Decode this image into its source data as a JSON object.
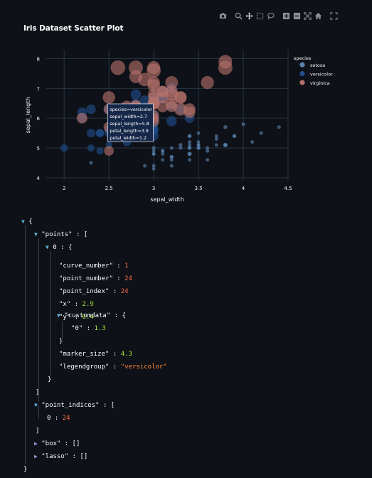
{
  "toolbar": {
    "icons": [
      "camera-icon",
      "zoom-icon",
      "pan-icon",
      "box-select-icon",
      "lasso-select-icon",
      "zoom-in-icon",
      "zoom-out-icon",
      "autoscale-icon",
      "reset-axes-icon",
      "fullscreen-icon"
    ]
  },
  "chart_data": {
    "type": "scatter",
    "title": "Iris Dataset Scatter Plot",
    "xlabel": "sepal_width",
    "ylabel": "sepal_length",
    "xlim": [
      1.8,
      4.5
    ],
    "ylim": [
      3.9,
      8.3
    ],
    "x_ticks": [
      "2",
      "2.5",
      "3",
      "3.5",
      "4",
      "4.5"
    ],
    "y_ticks": [
      "4",
      "5",
      "6",
      "7",
      "8"
    ],
    "grid": true,
    "legend_title": "species",
    "legend_position": "top-right",
    "series": [
      {
        "name": "setosa",
        "color": "#5b84b1",
        "points": [
          [
            3.5,
            5.1
          ],
          [
            3.0,
            4.9
          ],
          [
            3.2,
            4.7
          ],
          [
            3.1,
            4.6
          ],
          [
            3.6,
            5.0
          ],
          [
            3.9,
            5.4
          ],
          [
            3.4,
            4.6
          ],
          [
            3.4,
            5.0
          ],
          [
            2.9,
            4.4
          ],
          [
            3.1,
            4.9
          ],
          [
            3.7,
            5.4
          ],
          [
            3.4,
            4.8
          ],
          [
            3.0,
            4.8
          ],
          [
            3.0,
            4.3
          ],
          [
            4.0,
            5.8
          ],
          [
            4.4,
            5.7
          ],
          [
            3.9,
            5.4
          ],
          [
            3.5,
            5.1
          ],
          [
            3.8,
            5.7
          ],
          [
            3.8,
            5.1
          ],
          [
            3.4,
            5.4
          ],
          [
            3.7,
            5.1
          ],
          [
            3.6,
            4.6
          ],
          [
            3.3,
            5.1
          ],
          [
            3.4,
            4.8
          ],
          [
            3.0,
            5.0
          ],
          [
            3.4,
            5.0
          ],
          [
            3.5,
            5.2
          ],
          [
            3.4,
            5.2
          ],
          [
            3.2,
            4.7
          ],
          [
            3.1,
            4.8
          ],
          [
            3.4,
            5.4
          ],
          [
            4.1,
            5.2
          ],
          [
            4.2,
            5.5
          ],
          [
            3.1,
            4.9
          ],
          [
            3.2,
            5.0
          ],
          [
            3.5,
            5.5
          ],
          [
            3.6,
            4.9
          ],
          [
            3.0,
            4.4
          ],
          [
            3.4,
            5.1
          ],
          [
            3.5,
            5.0
          ],
          [
            2.3,
            4.5
          ],
          [
            3.2,
            4.4
          ],
          [
            3.5,
            5.0
          ],
          [
            3.8,
            5.1
          ],
          [
            3.0,
            4.8
          ],
          [
            3.8,
            5.1
          ],
          [
            3.2,
            4.6
          ],
          [
            3.7,
            5.3
          ],
          [
            3.3,
            5.0
          ]
        ],
        "sizes": [
          1.4,
          1.4,
          1.3,
          1.5,
          1.4,
          1.7,
          1.4,
          1.5,
          1.4,
          1.5,
          1.5,
          1.6,
          1.4,
          1.1,
          1.2,
          1.5,
          1.3,
          1.4,
          1.7,
          1.5,
          1.7,
          1.5,
          1.0,
          1.7,
          1.9,
          1.6,
          1.6,
          1.5,
          1.4,
          1.6,
          1.6,
          1.5,
          1.5,
          1.4,
          1.5,
          1.2,
          1.3,
          1.4,
          1.3,
          1.5,
          1.3,
          1.3,
          1.3,
          1.6,
          1.9,
          1.4,
          1.6,
          1.4,
          1.5,
          1.4
        ]
      },
      {
        "name": "versicolor",
        "color": "#1f4e8c",
        "points": [
          [
            3.2,
            7.0
          ],
          [
            3.2,
            6.4
          ],
          [
            3.1,
            6.9
          ],
          [
            2.3,
            5.5
          ],
          [
            2.8,
            6.5
          ],
          [
            2.8,
            5.7
          ],
          [
            3.3,
            6.3
          ],
          [
            2.4,
            4.9
          ],
          [
            2.9,
            6.6
          ],
          [
            2.7,
            5.2
          ],
          [
            2.0,
            5.0
          ],
          [
            3.0,
            5.9
          ],
          [
            2.2,
            6.0
          ],
          [
            2.9,
            6.1
          ],
          [
            2.9,
            5.6
          ],
          [
            3.1,
            6.7
          ],
          [
            3.0,
            5.6
          ],
          [
            2.7,
            5.8
          ],
          [
            2.2,
            6.2
          ],
          [
            2.5,
            5.6
          ],
          [
            3.2,
            5.9
          ],
          [
            2.8,
            6.1
          ],
          [
            2.5,
            6.3
          ],
          [
            2.8,
            6.1
          ],
          [
            2.9,
            6.4
          ],
          [
            3.0,
            6.6
          ],
          [
            2.8,
            6.8
          ],
          [
            3.0,
            6.7
          ],
          [
            2.9,
            6.0
          ],
          [
            2.6,
            5.7
          ],
          [
            2.4,
            5.5
          ],
          [
            2.4,
            5.5
          ],
          [
            2.7,
            5.8
          ],
          [
            2.7,
            6.0
          ],
          [
            3.0,
            5.4
          ],
          [
            3.4,
            6.0
          ],
          [
            3.1,
            6.7
          ],
          [
            2.3,
            6.3
          ],
          [
            3.0,
            5.6
          ],
          [
            2.5,
            5.5
          ],
          [
            2.6,
            5.5
          ],
          [
            3.0,
            6.1
          ],
          [
            2.6,
            5.8
          ],
          [
            2.3,
            5.0
          ],
          [
            2.7,
            5.6
          ],
          [
            3.0,
            5.7
          ],
          [
            2.9,
            5.7
          ],
          [
            2.9,
            6.2
          ],
          [
            2.5,
            5.1
          ],
          [
            2.8,
            5.7
          ]
        ],
        "sizes": [
          4.7,
          4.5,
          4.9,
          4.0,
          4.6,
          4.5,
          4.7,
          3.3,
          4.6,
          3.9,
          3.5,
          4.2,
          4.0,
          4.7,
          3.6,
          4.4,
          4.5,
          4.1,
          4.5,
          3.9,
          4.8,
          4.0,
          4.9,
          4.7,
          4.3,
          4.4,
          4.8,
          5.0,
          4.5,
          3.5,
          3.8,
          3.7,
          3.9,
          5.1,
          4.5,
          4.5,
          4.7,
          4.4,
          4.1,
          4.0,
          4.4,
          4.6,
          4.0,
          3.3,
          4.2,
          4.2,
          4.2,
          4.3,
          3.0,
          4.1
        ]
      },
      {
        "name": "virginica",
        "color": "#b5716b",
        "points": [
          [
            3.3,
            6.3
          ],
          [
            2.7,
            5.8
          ],
          [
            3.0,
            7.1
          ],
          [
            2.9,
            6.3
          ],
          [
            3.0,
            6.5
          ],
          [
            3.0,
            7.6
          ],
          [
            2.5,
            4.9
          ],
          [
            2.9,
            7.3
          ],
          [
            2.5,
            6.7
          ],
          [
            3.6,
            7.2
          ],
          [
            3.2,
            6.5
          ],
          [
            2.7,
            6.4
          ],
          [
            3.0,
            6.8
          ],
          [
            2.5,
            5.7
          ],
          [
            2.8,
            5.8
          ],
          [
            3.2,
            6.4
          ],
          [
            3.0,
            6.5
          ],
          [
            3.8,
            7.7
          ],
          [
            2.6,
            7.7
          ],
          [
            2.2,
            6.0
          ],
          [
            3.2,
            6.9
          ],
          [
            2.8,
            5.6
          ],
          [
            2.8,
            7.7
          ],
          [
            2.7,
            6.3
          ],
          [
            3.3,
            6.7
          ],
          [
            3.2,
            7.2
          ],
          [
            2.8,
            6.2
          ],
          [
            3.0,
            6.1
          ],
          [
            2.8,
            6.4
          ],
          [
            3.0,
            7.2
          ],
          [
            2.8,
            7.4
          ],
          [
            3.8,
            7.9
          ],
          [
            2.8,
            6.4
          ],
          [
            2.8,
            6.3
          ],
          [
            2.6,
            6.1
          ],
          [
            3.0,
            7.7
          ],
          [
            3.4,
            6.3
          ],
          [
            3.1,
            6.4
          ],
          [
            3.0,
            6.0
          ],
          [
            3.1,
            6.9
          ],
          [
            3.1,
            6.7
          ],
          [
            3.1,
            6.9
          ],
          [
            2.7,
            5.8
          ],
          [
            3.2,
            6.8
          ],
          [
            3.3,
            6.7
          ],
          [
            3.0,
            6.7
          ],
          [
            2.5,
            6.3
          ],
          [
            3.0,
            6.5
          ],
          [
            3.4,
            6.2
          ],
          [
            3.0,
            5.9
          ]
        ],
        "sizes": [
          6.0,
          5.1,
          5.9,
          5.6,
          5.8,
          6.6,
          4.5,
          6.3,
          5.8,
          6.1,
          5.1,
          5.3,
          5.5,
          5.0,
          5.1,
          5.3,
          5.5,
          6.7,
          6.9,
          5.0,
          5.7,
          4.9,
          6.7,
          4.9,
          5.7,
          6.0,
          4.8,
          4.9,
          5.6,
          5.8,
          6.1,
          6.4,
          5.6,
          5.1,
          5.6,
          6.1,
          5.6,
          5.5,
          4.8,
          5.4,
          5.6,
          5.1,
          5.1,
          5.9,
          5.7,
          5.2,
          5.0,
          5.2,
          5.4,
          5.1
        ]
      }
    ],
    "hover": {
      "lines": [
        "species=versicolor",
        "sepal_width=2.7",
        "sepal_length=5.8",
        "petal_length=3.9",
        "petal_width=1.2"
      ],
      "x": 2.7,
      "y": 5.8
    }
  },
  "json_view": {
    "root_open": "{",
    "points_key": "\"points\"",
    "points_open": "[",
    "item_index": "0",
    "item_open": "{",
    "fields": [
      {
        "key": "\"curve_number\"",
        "value": "1",
        "kind": "num"
      },
      {
        "key": "\"point_number\"",
        "value": "24",
        "kind": "num"
      },
      {
        "key": "\"point_index\"",
        "value": "24",
        "kind": "num"
      },
      {
        "key": "\"x\"",
        "value": "2.9",
        "kind": "numg"
      },
      {
        "key": "\"y\"",
        "value": "6.4",
        "kind": "numg"
      }
    ],
    "customdata_key": "\"customdata\"",
    "customdata_item_key": "\"0\"",
    "customdata_item_value": "1.3",
    "marker_size_key": "\"marker_size\"",
    "marker_size_value": "4.3",
    "legendgroup_key": "\"legendgroup\"",
    "legendgroup_value": "\"versicolor\"",
    "point_indices_key": "\"point_indices\"",
    "point_indices_item_index": "0",
    "point_indices_item_value": "24",
    "box_key": "\"box\"",
    "box_value": "[]",
    "lasso_key": "\"lasso\"",
    "lasso_value": "[]",
    "close_brace": "}",
    "close_bracket": "]",
    "colon": ":"
  }
}
